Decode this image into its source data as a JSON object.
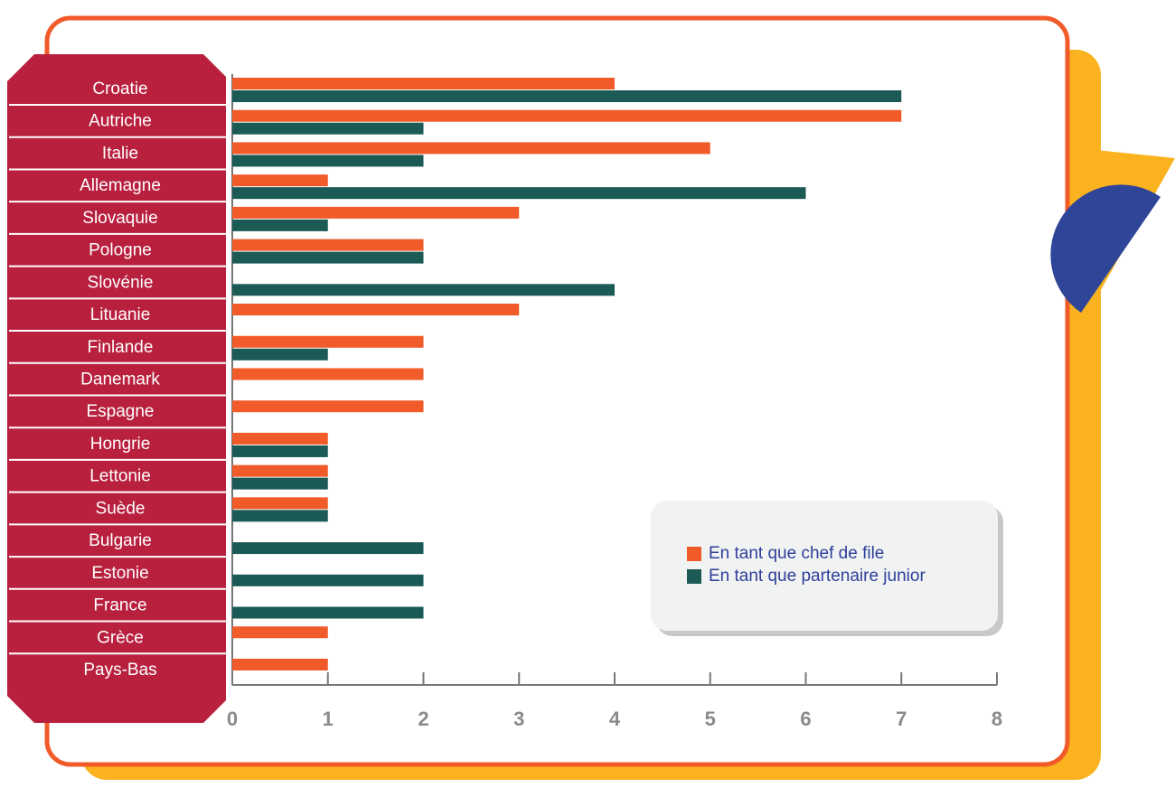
{
  "chart_data": {
    "type": "barh",
    "categories": [
      "Croatie",
      "Autriche",
      "Italie",
      "Allemagne",
      "Slovaquie",
      "Pologne",
      "Slovénie",
      "Lituanie",
      "Finlande",
      "Danemark",
      "Espagne",
      "Hongrie",
      "Lettonie",
      "Suède",
      "Bulgarie",
      "Estonie",
      "France",
      "Grèce",
      "Pays-Bas"
    ],
    "series": [
      {
        "name": "En tant que chef de file",
        "color": "#f15a29",
        "values": [
          4,
          7,
          5,
          1,
          3,
          2,
          0,
          3,
          2,
          2,
          2,
          1,
          1,
          1,
          0,
          0,
          0,
          1,
          1
        ]
      },
      {
        "name": "En tant que partenaire junior",
        "color": "#1b5a55",
        "values": [
          7,
          2,
          2,
          6,
          1,
          2,
          4,
          0,
          1,
          0,
          0,
          1,
          1,
          1,
          2,
          2,
          2,
          0,
          0
        ]
      }
    ],
    "xlim": [
      0,
      8
    ],
    "xticks": [
      0,
      1,
      2,
      3,
      4,
      5,
      6,
      7,
      8
    ],
    "legend": "lower right"
  }
}
